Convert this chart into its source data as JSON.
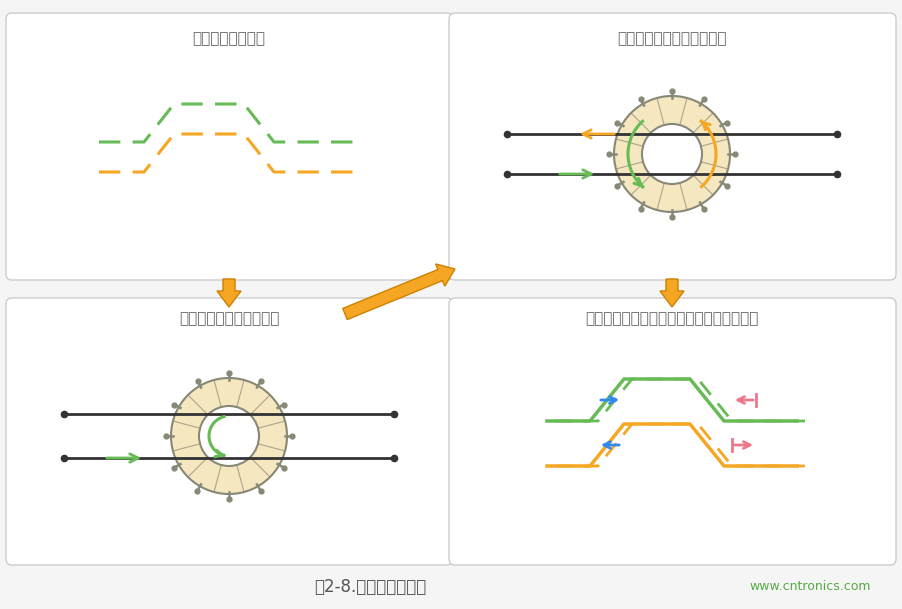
{
  "bg_color": "#f5f5f5",
  "panel_bg": "#ffffff",
  "title_color": "#666666",
  "caption": "图2-8.改善偏移的机制",
  "caption_color": "#555555",
  "watermark": "www.cntronics.com",
  "watermark_color": "#55aa44",
  "green_color": "#66bb55",
  "orange_color": "#f5a623",
  "toroid_fill": "#f5e8c0",
  "toroid_border": "#888877",
  "blue_color": "#3388ee",
  "pink_color": "#ee7788",
  "panel_titles": [
    "波形上升（下降）",
    "其它线路生成的感应电动势",
    "铁氧体磁芯生成的磁通量",
    "试图调整偏移的上升（下降）部分的时间。"
  ]
}
